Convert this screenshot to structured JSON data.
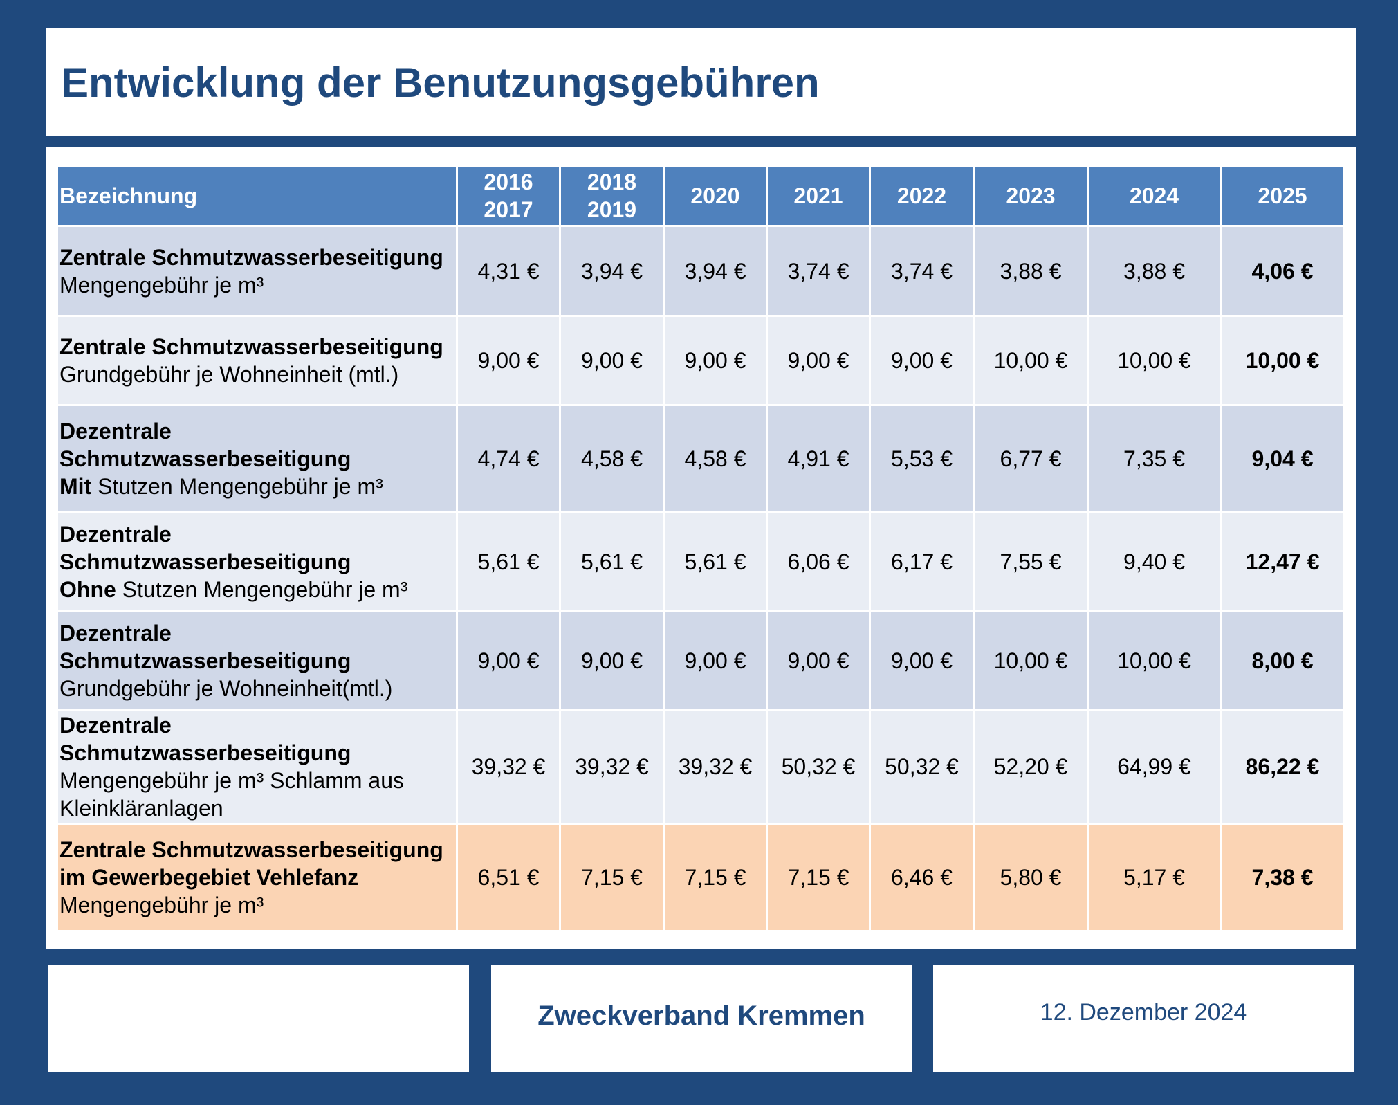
{
  "title": "Entwicklung der Benutzungsgebühren",
  "table": {
    "headers": [
      [
        "Bezeichnung"
      ],
      [
        "2016",
        "2017"
      ],
      [
        "2018",
        "2019"
      ],
      [
        "2020"
      ],
      [
        "2021"
      ],
      [
        "2022"
      ],
      [
        "2023"
      ],
      [
        "2024"
      ],
      [
        "2025"
      ]
    ],
    "rows": [
      {
        "label_bold": "Zentrale Schmutzwasserbeseitigung",
        "label_inline_bold": "",
        "label_rest": "Mengengebühr je m³",
        "values": [
          "4,31 €",
          "3,94 €",
          "3,94 €",
          "3,74 €",
          "3,74 €",
          "3,88 €",
          "3,88 €",
          "4,06 €"
        ]
      },
      {
        "label_bold": "Zentrale Schmutzwasserbeseitigung",
        "label_inline_bold": "",
        "label_rest": "Grundgebühr je Wohneinheit (mtl.)",
        "values": [
          "9,00 €",
          "9,00 €",
          "9,00 €",
          "9,00 €",
          "9,00 €",
          "10,00 €",
          "10,00 €",
          "10,00 €"
        ]
      },
      {
        "label_bold": "Dezentrale Schmutzwasserbeseitigung",
        "label_inline_bold": "Mit",
        "label_rest": " Stutzen Mengengebühr je m³",
        "values": [
          "4,74 €",
          "4,58 €",
          "4,58 €",
          "4,91 €",
          "5,53 €",
          "6,77 €",
          "7,35 €",
          "9,04 €"
        ]
      },
      {
        "label_bold": "Dezentrale Schmutzwasserbeseitigung",
        "label_inline_bold": "Ohne",
        "label_rest": " Stutzen Mengengebühr je m³",
        "values": [
          "5,61 €",
          "5,61 €",
          "5,61 €",
          "6,06 €",
          "6,17 €",
          "7,55 €",
          "9,40 €",
          "12,47 €"
        ]
      },
      {
        "label_bold": "Dezentrale Schmutzwasserbeseitigung",
        "label_inline_bold": "",
        "label_rest": "Grundgebühr je Wohneinheit(mtl.)",
        "values": [
          "9,00 €",
          "9,00 €",
          "9,00 €",
          "9,00 €",
          "9,00 €",
          "10,00 €",
          "10,00 €",
          "8,00 €"
        ]
      },
      {
        "label_bold": "Dezentrale Schmutzwasserbeseitigung",
        "label_inline_bold": "",
        "label_rest": "Mengengebühr je m³ Schlamm aus Kleinkläranlagen",
        "values": [
          "39,32 €",
          "39,32 €",
          "39,32 €",
          "50,32 €",
          "50,32 €",
          "52,20 €",
          "64,99 €",
          "86,22 €"
        ]
      },
      {
        "label_bold": "Zentrale Schmutzwasserbeseitigung im Gewerbegebiet Vehlefanz",
        "label_inline_bold": "",
        "label_rest": "Mengengebühr je m³",
        "values": [
          "6,51 €",
          "7,15 €",
          "7,15 €",
          "7,15 €",
          "6,46 €",
          "5,80 €",
          "5,17 €",
          "7,38 €"
        ]
      }
    ]
  },
  "footer": {
    "organization": "Zweckverband Kremmen",
    "date": "12. Dezember 2024"
  },
  "colors": {
    "frame": "#1f497d",
    "header": "#4f81bd",
    "row_dark": "#d0d8e8",
    "row_light": "#e9edf4",
    "row_highlight": "#fbd4b4"
  }
}
